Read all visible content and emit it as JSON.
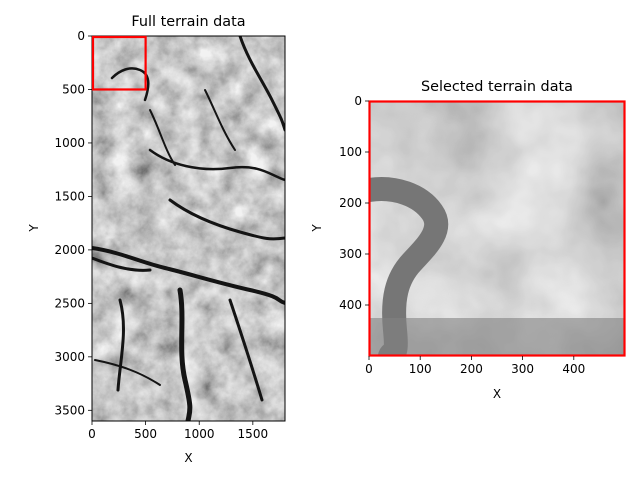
{
  "chart_data": [
    {
      "type": "heatmap",
      "title": "Full terrain data",
      "xlabel": "X",
      "ylabel": "Y",
      "colormap": "gray",
      "xlim": [
        0,
        1800
      ],
      "ylim": [
        3600,
        0
      ],
      "x_ticks": [
        0,
        500,
        1000,
        1500
      ],
      "y_ticks": [
        0,
        500,
        1000,
        1500,
        2000,
        2500,
        3000,
        3500
      ],
      "highlight_rect": {
        "x0": 0,
        "y0": 0,
        "x1": 500,
        "y1": 500,
        "color": "#ff0000"
      }
    },
    {
      "type": "heatmap",
      "title": "Selected terrain data",
      "xlabel": "X",
      "ylabel": "Y",
      "colormap": "gray",
      "xlim": [
        0,
        500
      ],
      "ylim": [
        500,
        0
      ],
      "x_ticks": [
        0,
        100,
        200,
        300,
        400
      ],
      "y_ticks": [
        0,
        100,
        200,
        300,
        400
      ],
      "border_color": "#ff0000"
    }
  ]
}
